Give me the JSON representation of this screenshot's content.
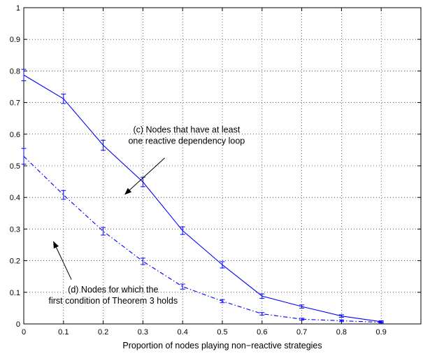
{
  "chart_data": {
    "type": "line",
    "title": "",
    "xlabel": "Proportion of nodes playing non−reactive strategies",
    "ylabel": "",
    "xlim": [
      0,
      1
    ],
    "ylim": [
      0,
      1
    ],
    "grid": true,
    "x_ticks": [
      {
        "value": 0,
        "label": "0"
      },
      {
        "value": 0.1,
        "label": "0.1"
      },
      {
        "value": 0.2,
        "label": "0.2"
      },
      {
        "value": 0.3,
        "label": "0.3"
      },
      {
        "value": 0.4,
        "label": "0.4"
      },
      {
        "value": 0.5,
        "label": "0.5"
      },
      {
        "value": 0.6,
        "label": "0.6"
      },
      {
        "value": 0.7,
        "label": "0.7"
      },
      {
        "value": 0.8,
        "label": "0.8"
      },
      {
        "value": 0.9,
        "label": "0.9"
      }
    ],
    "y_ticks": [
      {
        "value": 0,
        "label": "0"
      },
      {
        "value": 0.1,
        "label": "0.1"
      },
      {
        "value": 0.2,
        "label": "0.2"
      },
      {
        "value": 0.3,
        "label": "0.3"
      },
      {
        "value": 0.4,
        "label": "0.4"
      },
      {
        "value": 0.5,
        "label": "0.5"
      },
      {
        "value": 0.6,
        "label": "0.6"
      },
      {
        "value": 0.7,
        "label": "0.7"
      },
      {
        "value": 0.8,
        "label": "0.8"
      },
      {
        "value": 0.9,
        "label": "0.9"
      },
      {
        "value": 1,
        "label": "1"
      }
    ],
    "series": [
      {
        "id": "c",
        "style": "solid",
        "color": "#0000ff",
        "x": [
          0,
          0.1,
          0.2,
          0.3,
          0.4,
          0.5,
          0.6,
          0.7,
          0.8,
          0.9
        ],
        "y": [
          0.787,
          0.712,
          0.565,
          0.449,
          0.295,
          0.187,
          0.088,
          0.055,
          0.025,
          0.007
        ],
        "err": [
          0.018,
          0.015,
          0.016,
          0.015,
          0.012,
          0.01,
          0.007,
          0.005,
          0.004,
          0.003
        ]
      },
      {
        "id": "d",
        "style": "dashdot",
        "color": "#0000ff",
        "x": [
          0,
          0.1,
          0.2,
          0.3,
          0.4,
          0.5,
          0.6,
          0.7,
          0.8,
          0.9
        ],
        "y": [
          0.53,
          0.408,
          0.293,
          0.198,
          0.118,
          0.072,
          0.032,
          0.015,
          0.01,
          0.005
        ],
        "err": [
          0.025,
          0.014,
          0.012,
          0.01,
          0.008,
          0.005,
          0.004,
          0.003,
          0.003,
          0.002
        ]
      }
    ],
    "annotations": [
      {
        "id": "c",
        "lines": [
          "(c) Nodes that have at least",
          "one reactive dependency loop"
        ],
        "text_at": [
          0.41,
          0.605
        ],
        "arrow_from": [
          0.355,
          0.525
        ],
        "arrow_to": [
          0.255,
          0.41
        ]
      },
      {
        "id": "d",
        "lines": [
          "(d) Nodes for which the",
          "first condition of Theorem 3 holds"
        ],
        "text_at": [
          0.225,
          0.1
        ],
        "arrow_from": [
          0.12,
          0.14
        ],
        "arrow_to": [
          0.075,
          0.26
        ]
      }
    ]
  }
}
